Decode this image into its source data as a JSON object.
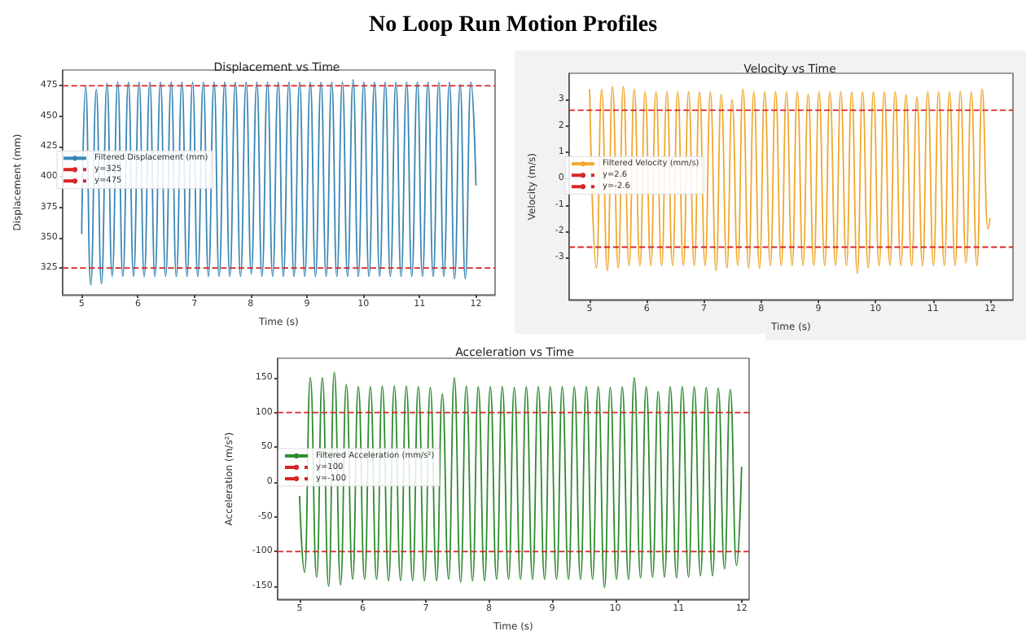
{
  "chart_data": [
    {
      "type": "line",
      "title": "Displacement vs Time",
      "xlabel": "Time (s)",
      "ylabel": "Displacement (mm)",
      "annotations": [
        "No Loop Run Motion Profiles"
      ],
      "xlim": [
        4.66,
        12.34
      ],
      "ylim": [
        303,
        488
      ],
      "xticks": [
        5,
        6,
        7,
        8,
        9,
        10,
        11,
        12
      ],
      "yticks": [
        325,
        350,
        375,
        400,
        425,
        450,
        475
      ],
      "legend": "left",
      "marker": "none",
      "line_style": "solid",
      "series": [
        {
          "name": "Filtered Displacement (mm)",
          "color": "#3a87b5",
          "x": [
            5.0,
            5.07,
            5.16,
            5.26,
            5.35,
            5.45,
            5.54,
            5.64,
            5.73,
            5.83,
            5.92,
            6.02,
            6.11,
            6.21,
            6.3,
            6.4,
            6.49,
            6.59,
            6.68,
            6.78,
            6.87,
            6.97,
            7.06,
            7.16,
            7.25,
            7.35,
            7.44,
            7.54,
            7.63,
            7.73,
            7.82,
            7.92,
            8.01,
            8.11,
            8.2,
            8.3,
            8.39,
            8.49,
            8.58,
            8.68,
            8.77,
            8.87,
            8.96,
            9.06,
            9.15,
            9.25,
            9.34,
            9.44,
            9.53,
            9.63,
            9.72,
            9.82,
            9.91,
            10.01,
            10.1,
            10.2,
            10.29,
            10.39,
            10.48,
            10.58,
            10.67,
            10.77,
            10.86,
            10.96,
            11.05,
            11.15,
            11.24,
            11.34,
            11.43,
            11.53,
            11.62,
            11.72,
            11.81,
            11.91,
            12.0
          ],
          "values": [
            353,
            475,
            311,
            472,
            312,
            477,
            318,
            478,
            318,
            478,
            318,
            478,
            318,
            478,
            318,
            478,
            318,
            478,
            318,
            478,
            318,
            478,
            318,
            478,
            318,
            478,
            318,
            478,
            318,
            478,
            318,
            478,
            320,
            478,
            318,
            478,
            318,
            478,
            318,
            478,
            318,
            478,
            318,
            478,
            318,
            478,
            318,
            478,
            318,
            478,
            318,
            480,
            318,
            478,
            318,
            478,
            318,
            478,
            318,
            478,
            318,
            478,
            318,
            478,
            318,
            478,
            318,
            478,
            318,
            478,
            316,
            476,
            316,
            478,
            393
          ]
        }
      ],
      "ref_lines": [
        {
          "axis": "y",
          "value": 325,
          "label": "y=325",
          "color": "#d62728",
          "line_style": "dashed"
        },
        {
          "axis": "y",
          "value": 475,
          "label": "y=475",
          "color": "#d62728",
          "line_style": "dashed"
        }
      ]
    },
    {
      "type": "line",
      "title": "Velocity vs Time",
      "xlabel": "Time (s)",
      "ylabel": "Velocity (m/s)",
      "xlim": [
        4.64,
        12.4
      ],
      "ylim": [
        -4.6,
        4.0
      ],
      "xticks": [
        5,
        6,
        7,
        8,
        9,
        10,
        11,
        12
      ],
      "yticks": [
        -3,
        -2,
        -1,
        0,
        1,
        2,
        3
      ],
      "legend": "left",
      "marker": "none",
      "line_style": "solid",
      "series": [
        {
          "name": "Filtered Velocity (mm/s)",
          "color": "#f0a830",
          "x": [
            5.0,
            5.12,
            5.21,
            5.31,
            5.4,
            5.5,
            5.59,
            5.69,
            5.78,
            5.88,
            5.97,
            6.07,
            6.16,
            6.26,
            6.35,
            6.45,
            6.54,
            6.64,
            6.73,
            6.83,
            6.92,
            7.02,
            7.11,
            7.21,
            7.3,
            7.4,
            7.49,
            7.59,
            7.68,
            7.78,
            7.87,
            7.97,
            8.06,
            8.16,
            8.25,
            8.35,
            8.44,
            8.54,
            8.63,
            8.73,
            8.82,
            8.92,
            9.01,
            9.11,
            9.2,
            9.3,
            9.39,
            9.49,
            9.58,
            9.68,
            9.77,
            9.87,
            9.96,
            10.06,
            10.15,
            10.25,
            10.34,
            10.44,
            10.53,
            10.63,
            10.72,
            10.82,
            10.91,
            11.01,
            11.1,
            11.2,
            11.29,
            11.39,
            11.48,
            11.58,
            11.67,
            11.77,
            11.86,
            11.96,
            12.0
          ],
          "values": [
            3.4,
            -3.4,
            3.4,
            -3.5,
            3.5,
            -3.4,
            3.5,
            -3.3,
            3.4,
            -3.3,
            3.3,
            -3.3,
            3.3,
            -3.3,
            3.3,
            -3.3,
            3.3,
            -3.3,
            3.3,
            -3.3,
            3.3,
            -3.3,
            3.3,
            -3.5,
            3.2,
            -3.4,
            3.0,
            -3.3,
            3.4,
            -3.4,
            3.3,
            -3.4,
            3.3,
            -3.3,
            3.3,
            -3.3,
            3.3,
            -3.3,
            3.3,
            -3.3,
            3.2,
            -3.3,
            3.3,
            -3.3,
            3.3,
            -3.3,
            3.3,
            -3.3,
            3.3,
            -3.6,
            3.3,
            -3.4,
            3.3,
            -3.3,
            3.3,
            -3.3,
            3.3,
            -3.3,
            3.2,
            -3.3,
            3.1,
            -3.3,
            3.3,
            -3.3,
            3.3,
            -3.3,
            3.3,
            -3.3,
            3.3,
            -3.2,
            3.3,
            -3.3,
            3.4,
            -1.9,
            -1.5
          ]
        }
      ],
      "ref_lines": [
        {
          "axis": "y",
          "value": 2.6,
          "label": "y=2.6",
          "color": "#d62728",
          "line_style": "dashed"
        },
        {
          "axis": "y",
          "value": -2.6,
          "label": "y=-2.6",
          "color": "#d62728",
          "line_style": "dashed"
        }
      ]
    },
    {
      "type": "line",
      "title": "Acceleration vs Time",
      "xlabel": "Time (s)",
      "ylabel": "Acceleration (m/s²)",
      "xlim": [
        4.65,
        12.12
      ],
      "ylim": [
        -169,
        178
      ],
      "xticks": [
        5,
        6,
        7,
        8,
        9,
        10,
        11,
        12
      ],
      "yticks": [
        -150,
        -100,
        -50,
        0,
        50,
        100,
        150
      ],
      "legend": "left",
      "marker": "none",
      "line_style": "solid",
      "series": [
        {
          "name": "Filtered Acceleration (mm/s²)",
          "color": "#2e8b2e",
          "x": [
            5.0,
            5.08,
            5.17,
            5.27,
            5.36,
            5.46,
            5.55,
            5.65,
            5.74,
            5.84,
            5.93,
            6.03,
            6.12,
            6.22,
            6.31,
            6.41,
            6.5,
            6.6,
            6.69,
            6.79,
            6.88,
            6.98,
            7.07,
            7.17,
            7.26,
            7.36,
            7.45,
            7.55,
            7.64,
            7.74,
            7.83,
            7.93,
            8.02,
            8.12,
            8.21,
            8.31,
            8.4,
            8.5,
            8.59,
            8.69,
            8.78,
            8.88,
            8.97,
            9.07,
            9.16,
            9.26,
            9.35,
            9.45,
            9.54,
            9.64,
            9.73,
            9.83,
            9.92,
            10.02,
            10.11,
            10.21,
            10.3,
            10.4,
            10.49,
            10.59,
            10.68,
            10.78,
            10.87,
            10.97,
            11.06,
            11.16,
            11.25,
            11.35,
            11.44,
            11.54,
            11.63,
            11.73,
            11.82,
            11.92,
            12.0
          ],
          "values": [
            -20,
            -130,
            150,
            -137,
            150,
            -150,
            158,
            -148,
            140,
            -140,
            137,
            -140,
            137,
            -140,
            138,
            -142,
            138,
            -142,
            138,
            -142,
            137,
            -142,
            136,
            -142,
            127,
            -140,
            150,
            -144,
            138,
            -142,
            137,
            -142,
            137,
            -140,
            137,
            -140,
            136,
            -140,
            137,
            -140,
            137,
            -140,
            137,
            -140,
            137,
            -140,
            137,
            -140,
            137,
            -140,
            137,
            -152,
            136,
            -140,
            137,
            -140,
            150,
            -138,
            137,
            -137,
            130,
            -137,
            137,
            -138,
            137,
            -137,
            137,
            -135,
            136,
            -135,
            135,
            -125,
            133,
            -120,
            22
          ]
        }
      ],
      "ref_lines": [
        {
          "axis": "y",
          "value": 100,
          "label": "y=100",
          "color": "#d62728",
          "line_style": "dashed"
        },
        {
          "axis": "y",
          "value": -100,
          "label": "y=-100",
          "color": "#d62728",
          "line_style": "dashed"
        }
      ]
    }
  ]
}
